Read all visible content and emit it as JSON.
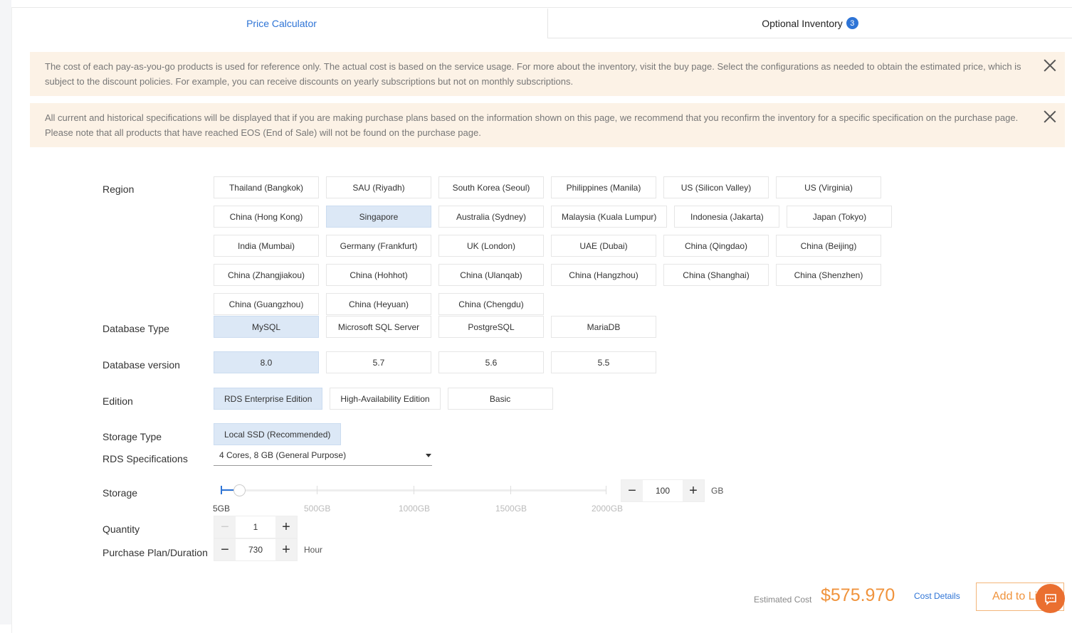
{
  "tabs": [
    {
      "label": "Price Calculator",
      "active": true
    },
    {
      "label": "Optional Inventory",
      "badge": "3"
    }
  ],
  "notices": [
    "The cost of each pay-as-you-go products is used for reference only. The actual cost is based on the service usage. For more about the inventory, visit the buy page. Select the configurations as needed to obtain the estimated price, which is subject to the discount policies. For example, you can receive discounts on yearly subscriptions but not on monthly subscriptions.",
    "All current and historical specifications will be displayed that if you are making purchase plans based on the information shown on this page, we recommend that you reconfirm the inventory for a specific specification on the purchase page. Please note that all products that have reached EOS (End of Sale) will not be found on the purchase page."
  ],
  "labels": {
    "region": "Region",
    "db_type": "Database Type",
    "db_version": "Database version",
    "edition": "Edition",
    "storage_type": "Storage Type",
    "rds_spec": "RDS Specifications",
    "storage": "Storage",
    "quantity": "Quantity",
    "duration": "Purchase Plan/Duration"
  },
  "regions": [
    [
      "Thailand (Bangkok)",
      "SAU (Riyadh)",
      "South Korea (Seoul)",
      "Philippines (Manila)",
      "US (Silicon Valley)",
      "US (Virginia)"
    ],
    [
      "China (Hong Kong)",
      "Singapore",
      "Australia (Sydney)",
      "Malaysia (Kuala Lumpur)",
      "Indonesia (Jakarta)",
      "Japan (Tokyo)"
    ],
    [
      "India (Mumbai)",
      "Germany (Frankfurt)",
      "UK (London)",
      "UAE (Dubai)",
      "China (Qingdao)",
      "China (Beijing)"
    ],
    [
      "China (Zhangjiakou)",
      "China (Hohhot)",
      "China (Ulanqab)",
      "China (Hangzhou)",
      "China (Shanghai)",
      "China (Shenzhen)"
    ],
    [
      "China (Guangzhou)",
      "China (Heyuan)",
      "China (Chengdu)"
    ]
  ],
  "selected_region": "Singapore",
  "db_types": [
    "MySQL",
    "Microsoft SQL Server",
    "PostgreSQL",
    "MariaDB"
  ],
  "selected_db_type": "MySQL",
  "db_versions": [
    "8.0",
    "5.7",
    "5.6",
    "5.5"
  ],
  "selected_db_version": "8.0",
  "editions": [
    "RDS Enterprise Edition",
    "High-Availability Edition",
    "Basic"
  ],
  "selected_edition": "RDS Enterprise Edition",
  "storage_types": [
    "Local SSD (Recommended)"
  ],
  "rds_spec": "4 Cores, 8 GB (General Purpose)",
  "storage": {
    "value": "100",
    "unit": "GB",
    "min": 5,
    "max": 2000,
    "marks": [
      "5GB",
      "500GB",
      "1000GB",
      "1500GB",
      "2000GB"
    ]
  },
  "quantity": "1",
  "duration": {
    "value": "730",
    "unit": "Hour"
  },
  "footer": {
    "estimated_label": "Estimated Cost",
    "price": "$575.970",
    "details": "Cost Details",
    "add": "Add to List"
  },
  "colors": {
    "accent": "#2e74d6",
    "price": "#f0933c",
    "notice_bg": "#fcf2e6",
    "selected_bg": "#dce8f6"
  }
}
